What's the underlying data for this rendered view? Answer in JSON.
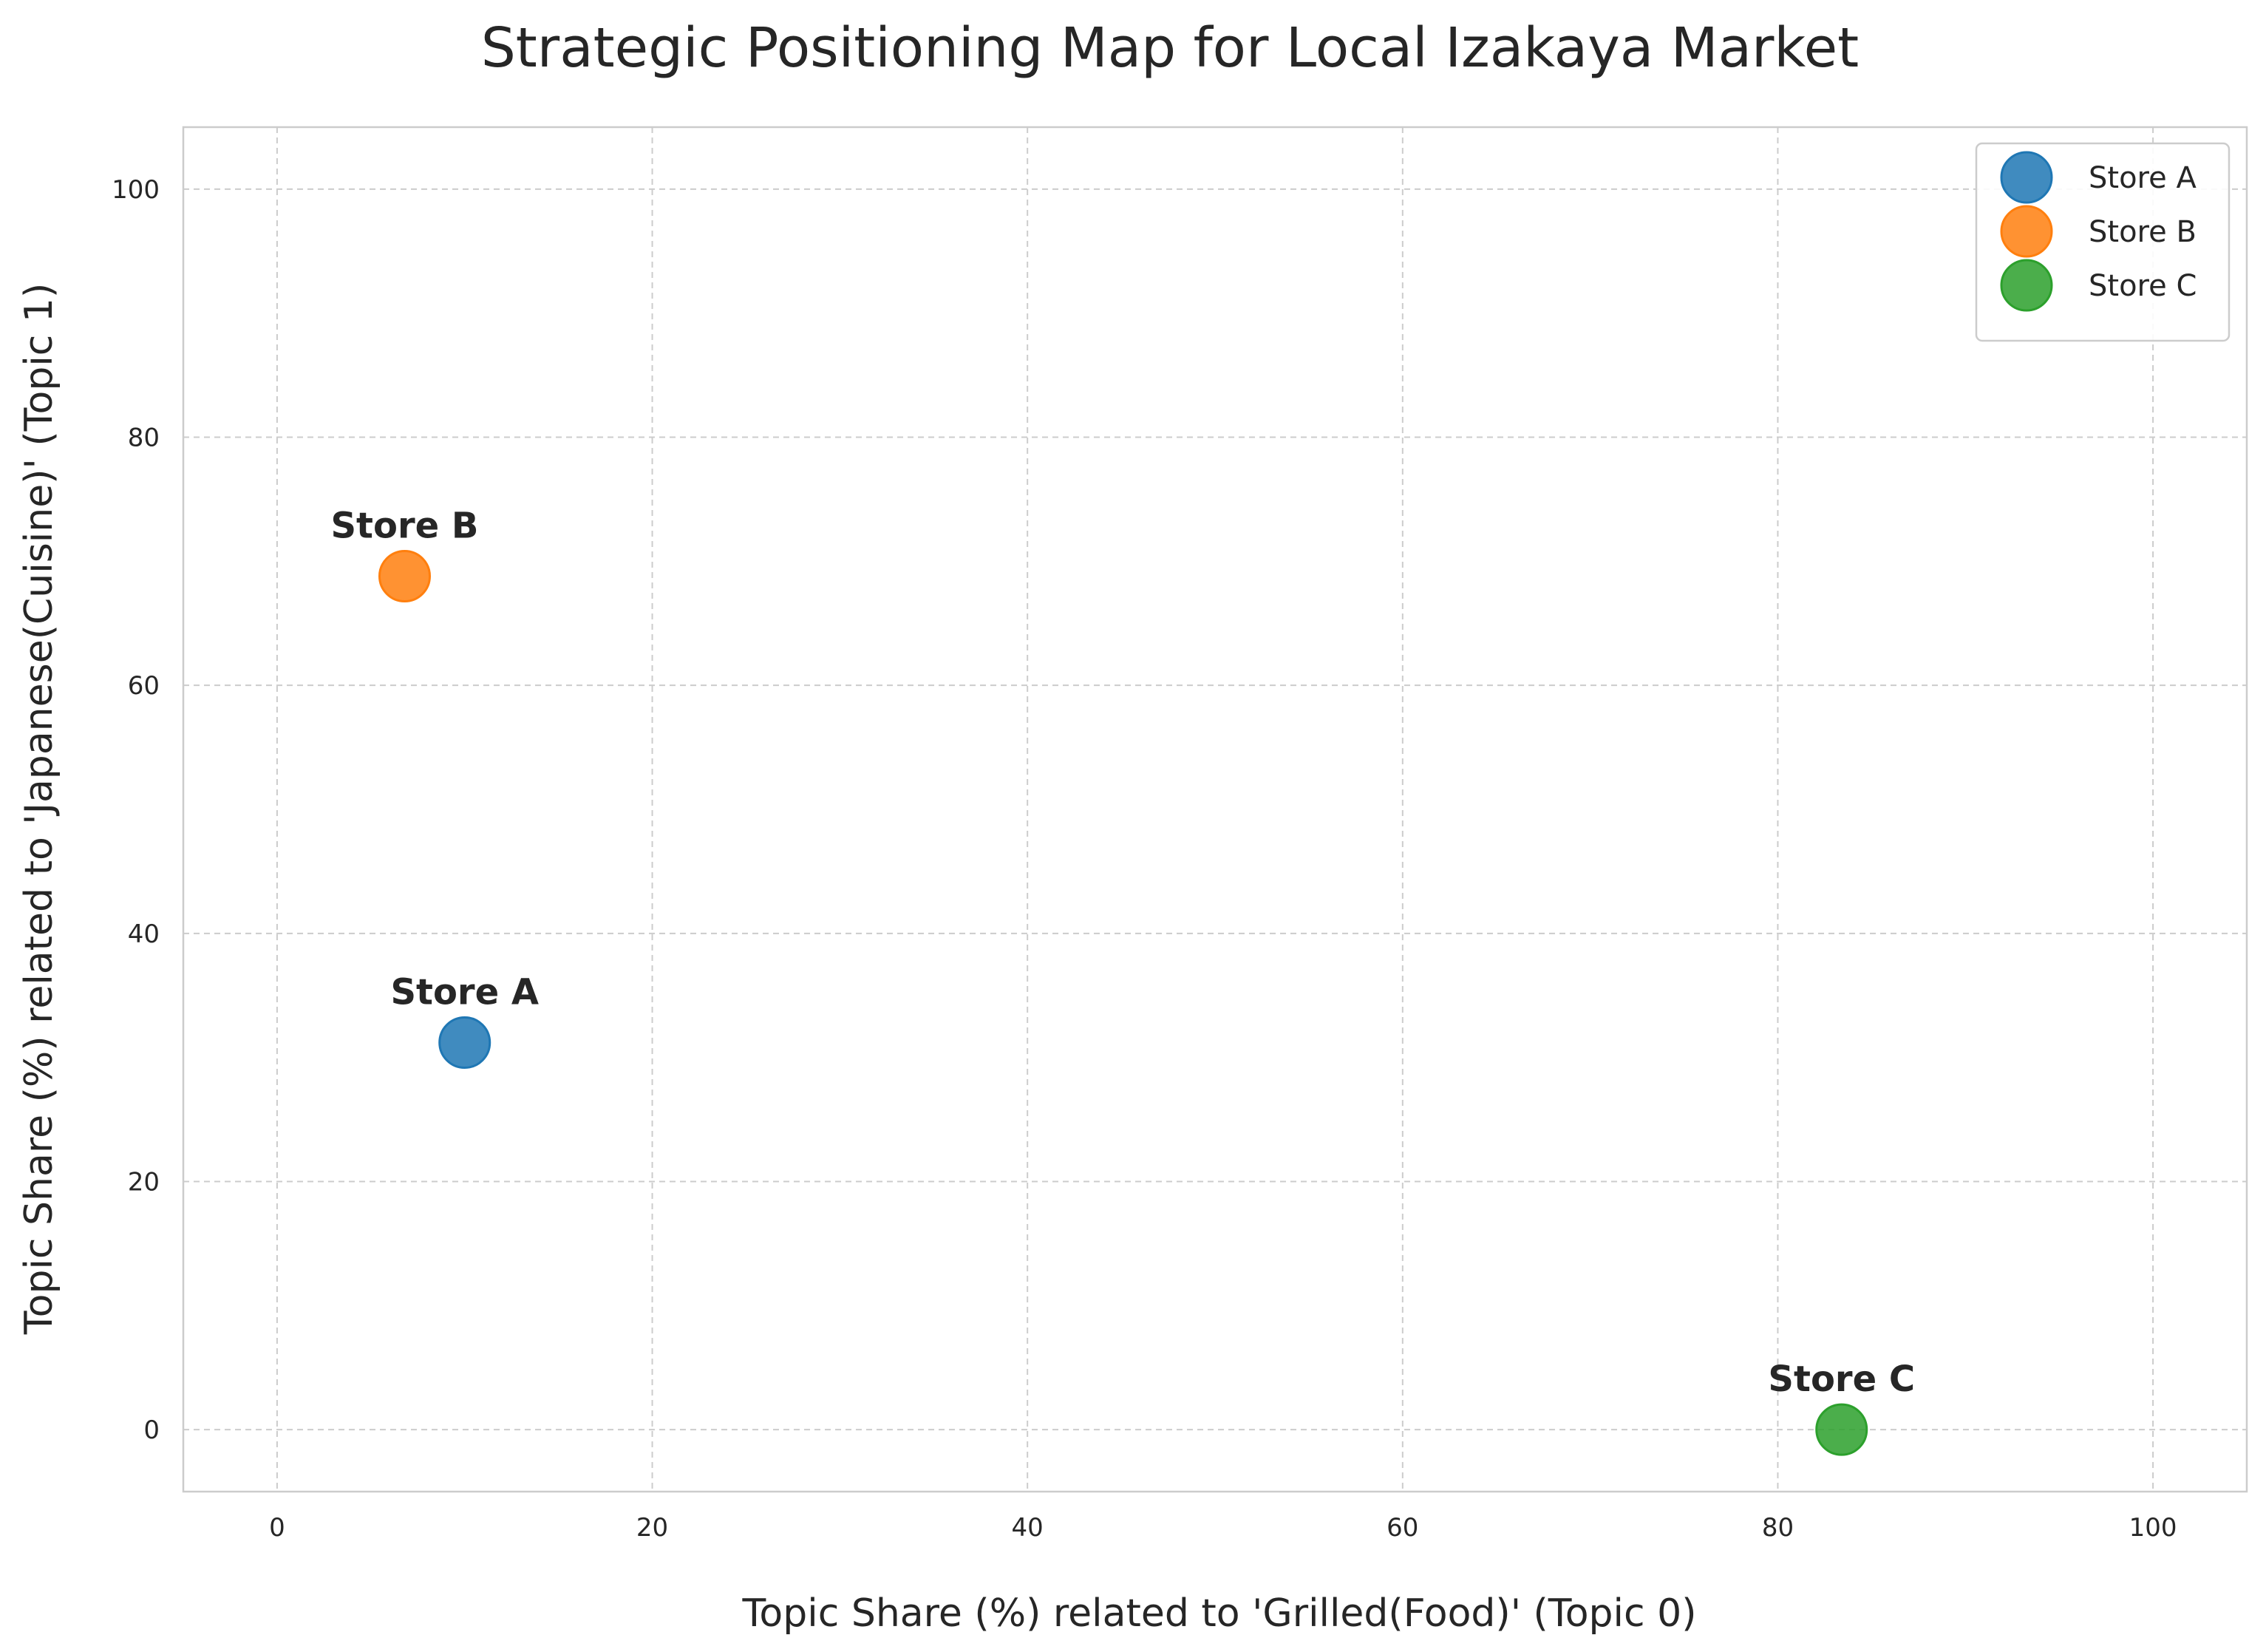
{
  "chart_data": {
    "type": "scatter",
    "title": "Strategic Positioning Map for Local Izakaya Market",
    "xlabel": "Topic Share (%) related to 'Grilled(Food)' (Topic 0)",
    "ylabel": "Topic Share (%) related to 'Japanese(Cuisine)' (Topic 1)",
    "xlim": [
      -5,
      105
    ],
    "ylim": [
      -5,
      105
    ],
    "xticks": [
      "0",
      "20",
      "40",
      "60",
      "80",
      "100"
    ],
    "yticks": [
      "0",
      "20",
      "40",
      "60",
      "80",
      "100"
    ],
    "grid": true,
    "legend_position": "top-right",
    "series": [
      {
        "name": "Store A",
        "color": "#1f77b4",
        "x": 10.0,
        "y": 31.2,
        "label": "Store A"
      },
      {
        "name": "Store B",
        "color": "#ff7f0e",
        "x": 6.8,
        "y": 68.8,
        "label": "Store B"
      },
      {
        "name": "Store C",
        "color": "#2ca02c",
        "x": 83.4,
        "y": 0.0,
        "label": "Store C"
      }
    ]
  }
}
